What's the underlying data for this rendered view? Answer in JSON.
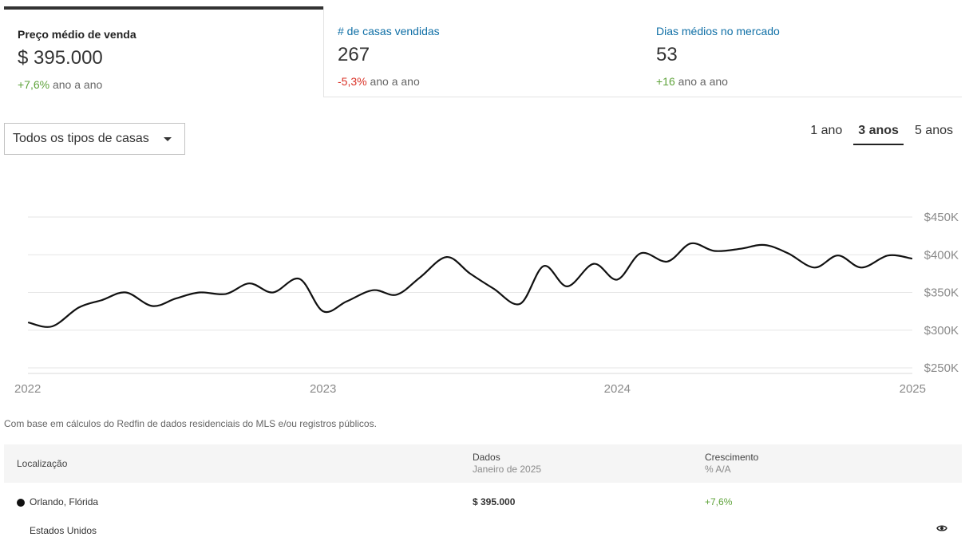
{
  "metrics": [
    {
      "label": "Preço médio de venda",
      "value": "$ 395.000",
      "change": "+7,6%",
      "change_suffix": "ano a ano"
    },
    {
      "label": "# de casas vendidas",
      "value": "267",
      "change": "-5,3%",
      "change_suffix": "ano a ano"
    },
    {
      "label": "Dias médios no mercado",
      "value": "53",
      "change": "+16",
      "change_suffix": "ano a ano"
    }
  ],
  "filter": {
    "selected": "Todos os tipos de casas"
  },
  "ranges": [
    "1 ano",
    "3 anos",
    "5 anos"
  ],
  "active_range": "3 anos",
  "chart_data": {
    "type": "line",
    "title": "",
    "xlabel": "",
    "ylabel": "",
    "x_ticks": [
      "2022",
      "2023",
      "2024",
      "2025"
    ],
    "y_ticks": [
      "$250K",
      "$300K",
      "$350K",
      "$400K",
      "$450K"
    ],
    "xlim": [
      2022.0,
      2025.0
    ],
    "ylim": [
      250000,
      450000
    ],
    "grid": true,
    "line_color": "#111111",
    "series": [
      {
        "x": [
          2022.0,
          2022.08,
          2022.17,
          2022.25,
          2022.33,
          2022.42,
          2022.5,
          2022.58,
          2022.67,
          2022.75,
          2022.83,
          2022.92,
          2023.0,
          2023.08,
          2023.17,
          2023.25,
          2023.33,
          2023.42,
          2023.5,
          2023.58,
          2023.67,
          2023.75,
          2023.83,
          2023.92,
          2024.0,
          2024.08,
          2024.17,
          2024.25,
          2024.33,
          2024.42,
          2024.5,
          2024.58,
          2024.67,
          2024.75,
          2024.83,
          2024.92,
          2025.0
        ],
        "y": [
          310000,
          305000,
          330000,
          340000,
          350000,
          332000,
          342000,
          350000,
          348000,
          362000,
          350000,
          368000,
          325000,
          338000,
          353000,
          347000,
          370000,
          397000,
          375000,
          355000,
          335000,
          385000,
          358000,
          388000,
          367000,
          402000,
          391000,
          415000,
          405000,
          408000,
          413000,
          402000,
          383000,
          399000,
          383000,
          399000,
          395000
        ]
      }
    ]
  },
  "source_note": "Com base em cálculos do Redfin de dados residenciais do MLS e/ou registros públicos.",
  "table": {
    "col_location": "Localização",
    "col_data": "Dados",
    "col_data_sub": "Janeiro de 2025",
    "col_growth": "Crescimento",
    "col_growth_sub": "% A/A",
    "rows": [
      {
        "location": "Orlando, Flórida",
        "value": "$ 395.000",
        "growth": "+7,6%"
      },
      {
        "location": "Estados Unidos",
        "value": "",
        "growth": ""
      }
    ]
  },
  "icons": {
    "eye": "eye-icon",
    "dropdown": "chevron-down-icon"
  }
}
